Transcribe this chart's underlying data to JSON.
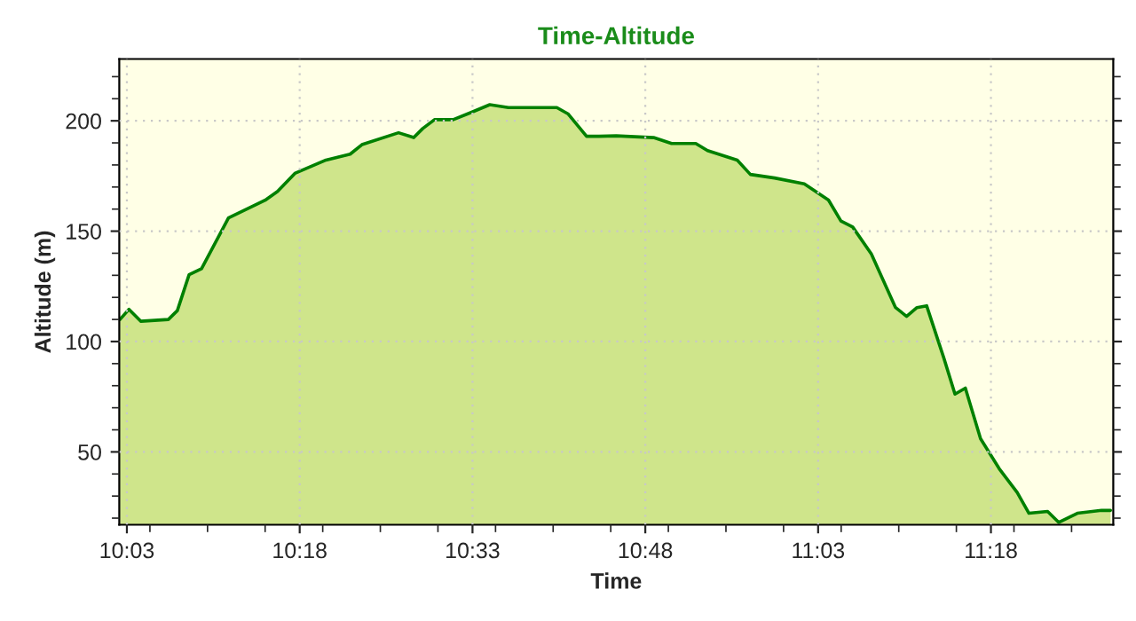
{
  "chart_data": {
    "type": "area",
    "title": "Time-Altitude",
    "xlabel": "Time",
    "ylabel": "Altitude (m)",
    "x": [
      10.04,
      10.053,
      10.07,
      10.11,
      10.123,
      10.14,
      10.158,
      10.197,
      10.25,
      10.268,
      10.293,
      10.338,
      10.373,
      10.39,
      10.443,
      10.465,
      10.478,
      10.495,
      10.522,
      10.548,
      10.575,
      10.602,
      10.672,
      10.688,
      10.715,
      10.733,
      10.758,
      10.812,
      10.838,
      10.873,
      10.89,
      10.933,
      10.952,
      10.987,
      11.03,
      11.065,
      11.083,
      11.1,
      11.127,
      11.162,
      11.178,
      11.193,
      11.207,
      11.232,
      11.248,
      11.263,
      11.285,
      11.312,
      11.338,
      11.355,
      11.382,
      11.398,
      11.425,
      11.46,
      11.473
    ],
    "series": [
      {
        "color": "#008000",
        "values": [
          110,
          114.6,
          109.2,
          110,
          114,
          130.3,
          133,
          156,
          164,
          168,
          176.2,
          182.2,
          184.9,
          189.2,
          194.6,
          192.4,
          196.5,
          200.5,
          200.5,
          203.8,
          207.3,
          206,
          206,
          203.2,
          193,
          193,
          193.2,
          192.4,
          189.7,
          189.7,
          186.5,
          182.2,
          175.7,
          174.1,
          171.4,
          164.1,
          154.6,
          151.9,
          139.7,
          115.4,
          111.4,
          115.4,
          116.2,
          92.4,
          76.2,
          78.9,
          56,
          42.4,
          31.6,
          22.2,
          23,
          18.1,
          22.2,
          23.5,
          23.5
        ]
      }
    ],
    "xlim": [
      10.039,
      11.477
    ],
    "xticks": [
      {
        "value": 10.05,
        "label": "10:03"
      },
      {
        "value": 10.3,
        "label": "10:18"
      },
      {
        "value": 10.55,
        "label": "10:33"
      },
      {
        "value": 10.8,
        "label": "10:48"
      },
      {
        "value": 11.05,
        "label": "11:03"
      },
      {
        "value": 11.3,
        "label": "11:18"
      }
    ],
    "ylim": [
      17,
      228
    ],
    "yticks": [
      50,
      100,
      150,
      200
    ],
    "grid": true,
    "legend": false
  }
}
